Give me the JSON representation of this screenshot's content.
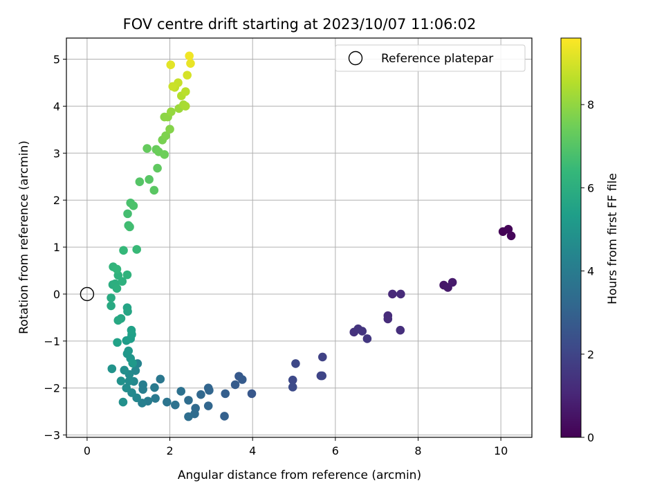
{
  "chart_data": {
    "type": "scatter",
    "title": "FOV centre drift starting at 2023/10/07 11:06:02",
    "xlabel": "Angular distance from reference (arcmin)",
    "ylabel": "Rotation from reference (arcmin)",
    "xlim": [
      -0.5,
      10.75
    ],
    "ylim": [
      -3.05,
      5.45
    ],
    "x_ticks": [
      0,
      2,
      4,
      6,
      8,
      10
    ],
    "y_ticks": [
      -3,
      -2,
      -1,
      0,
      1,
      2,
      3,
      4,
      5
    ],
    "grid": true,
    "legend": {
      "placement": "top-right",
      "entries": [
        "Reference platepar"
      ]
    },
    "reference_point": {
      "x": 0,
      "y": 0,
      "marker": "open-circle"
    },
    "colorbar": {
      "label": "Hours from first FF file",
      "colormap": "viridis",
      "range": [
        0,
        9.6
      ],
      "ticks": [
        0,
        2,
        4,
        6,
        8
      ]
    },
    "series": [
      {
        "points": [
          {
            "x": 10.05,
            "y": 1.33,
            "h": 0.05
          },
          {
            "x": 10.18,
            "y": 1.38,
            "h": 0.1
          },
          {
            "x": 10.25,
            "y": 1.24,
            "h": 0.15
          },
          {
            "x": 8.62,
            "y": 0.19,
            "h": 0.6
          },
          {
            "x": 8.72,
            "y": 0.14,
            "h": 0.65
          },
          {
            "x": 8.83,
            "y": 0.25,
            "h": 0.7
          },
          {
            "x": 7.38,
            "y": 0.0,
            "h": 1.1
          },
          {
            "x": 7.58,
            "y": 0.0,
            "h": 1.15
          },
          {
            "x": 7.27,
            "y": -0.46,
            "h": 1.2
          },
          {
            "x": 7.27,
            "y": -0.53,
            "h": 1.22
          },
          {
            "x": 7.57,
            "y": -0.77,
            "h": 1.3
          },
          {
            "x": 6.45,
            "y": -0.81,
            "h": 1.4
          },
          {
            "x": 6.55,
            "y": -0.74,
            "h": 1.45
          },
          {
            "x": 6.65,
            "y": -0.79,
            "h": 1.5
          },
          {
            "x": 6.77,
            "y": -0.95,
            "h": 1.55
          },
          {
            "x": 5.69,
            "y": -1.34,
            "h": 1.9
          },
          {
            "x": 5.04,
            "y": -1.48,
            "h": 2.1
          },
          {
            "x": 4.97,
            "y": -1.83,
            "h": 2.15
          },
          {
            "x": 4.97,
            "y": -1.98,
            "h": 2.2
          },
          {
            "x": 5.65,
            "y": -1.74,
            "h": 2.0
          },
          {
            "x": 5.68,
            "y": -1.74,
            "h": 2.02
          },
          {
            "x": 3.98,
            "y": -2.12,
            "h": 2.6
          },
          {
            "x": 3.67,
            "y": -1.75,
            "h": 2.7
          },
          {
            "x": 3.75,
            "y": -1.82,
            "h": 2.75
          },
          {
            "x": 3.58,
            "y": -1.93,
            "h": 2.8
          },
          {
            "x": 3.34,
            "y": -2.12,
            "h": 2.9
          },
          {
            "x": 3.32,
            "y": -2.6,
            "h": 2.95
          },
          {
            "x": 2.93,
            "y": -2.0,
            "h": 3.1
          },
          {
            "x": 2.95,
            "y": -2.05,
            "h": 3.12
          },
          {
            "x": 2.93,
            "y": -2.38,
            "h": 3.15
          },
          {
            "x": 2.75,
            "y": -2.14,
            "h": 3.2
          },
          {
            "x": 2.62,
            "y": -2.43,
            "h": 3.3
          },
          {
            "x": 2.6,
            "y": -2.55,
            "h": 3.35
          },
          {
            "x": 2.45,
            "y": -2.26,
            "h": 3.4
          },
          {
            "x": 2.45,
            "y": -2.61,
            "h": 3.45
          },
          {
            "x": 2.27,
            "y": -2.07,
            "h": 3.55
          },
          {
            "x": 2.13,
            "y": -2.36,
            "h": 3.6
          },
          {
            "x": 1.93,
            "y": -2.3,
            "h": 3.7
          },
          {
            "x": 1.77,
            "y": -1.81,
            "h": 3.8
          },
          {
            "x": 1.65,
            "y": -2.22,
            "h": 3.9
          },
          {
            "x": 1.63,
            "y": -1.99,
            "h": 3.95
          },
          {
            "x": 1.47,
            "y": -2.28,
            "h": 4.0
          },
          {
            "x": 1.35,
            "y": -1.93,
            "h": 4.1
          },
          {
            "x": 1.35,
            "y": -2.03,
            "h": 4.12
          },
          {
            "x": 1.33,
            "y": -2.32,
            "h": 4.15
          },
          {
            "x": 1.22,
            "y": -1.48,
            "h": 4.3
          },
          {
            "x": 1.2,
            "y": -2.21,
            "h": 4.4
          },
          {
            "x": 1.17,
            "y": -1.63,
            "h": 4.45
          },
          {
            "x": 1.13,
            "y": -1.86,
            "h": 4.5
          },
          {
            "x": 1.08,
            "y": -2.1,
            "h": 4.55
          },
          {
            "x": 1.02,
            "y": -1.71,
            "h": 4.6
          },
          {
            "x": 1.02,
            "y": -1.85,
            "h": 4.65
          },
          {
            "x": 0.95,
            "y": -2.0,
            "h": 4.7
          },
          {
            "x": 0.9,
            "y": -1.62,
            "h": 4.75
          },
          {
            "x": 0.87,
            "y": -2.3,
            "h": 4.8
          },
          {
            "x": 0.82,
            "y": -1.85,
            "h": 4.85
          },
          {
            "x": 0.6,
            "y": -1.59,
            "h": 4.9
          },
          {
            "x": 1.05,
            "y": -1.37,
            "h": 5.0
          },
          {
            "x": 0.97,
            "y": -1.27,
            "h": 5.05
          },
          {
            "x": 1.0,
            "y": -1.21,
            "h": 5.1
          },
          {
            "x": 1.1,
            "y": -1.47,
            "h": 5.15
          },
          {
            "x": 0.95,
            "y": -0.99,
            "h": 5.3
          },
          {
            "x": 1.05,
            "y": -0.95,
            "h": 5.35
          },
          {
            "x": 1.08,
            "y": -0.86,
            "h": 5.4
          },
          {
            "x": 1.07,
            "y": -0.77,
            "h": 5.45
          },
          {
            "x": 0.73,
            "y": -1.03,
            "h": 5.5
          },
          {
            "x": 0.97,
            "y": -0.29,
            "h": 5.6
          },
          {
            "x": 0.98,
            "y": -0.37,
            "h": 5.65
          },
          {
            "x": 0.82,
            "y": -0.52,
            "h": 5.7
          },
          {
            "x": 0.75,
            "y": -0.56,
            "h": 5.75
          },
          {
            "x": 0.58,
            "y": -0.25,
            "h": 5.8
          },
          {
            "x": 0.58,
            "y": -0.08,
            "h": 5.85
          },
          {
            "x": 0.62,
            "y": 0.2,
            "h": 5.95
          },
          {
            "x": 0.68,
            "y": 0.22,
            "h": 6.0
          },
          {
            "x": 0.72,
            "y": 0.12,
            "h": 6.05
          },
          {
            "x": 0.85,
            "y": 0.27,
            "h": 6.1
          },
          {
            "x": 0.75,
            "y": 0.4,
            "h": 6.15
          },
          {
            "x": 0.97,
            "y": 0.41,
            "h": 6.2
          },
          {
            "x": 0.63,
            "y": 0.58,
            "h": 6.25
          },
          {
            "x": 0.72,
            "y": 0.53,
            "h": 6.3
          },
          {
            "x": 0.88,
            "y": 0.93,
            "h": 6.4
          },
          {
            "x": 1.2,
            "y": 0.95,
            "h": 6.45
          },
          {
            "x": 1.0,
            "y": 1.46,
            "h": 6.6
          },
          {
            "x": 1.03,
            "y": 1.43,
            "h": 6.65
          },
          {
            "x": 0.98,
            "y": 1.71,
            "h": 6.7
          },
          {
            "x": 1.05,
            "y": 1.94,
            "h": 6.8
          },
          {
            "x": 1.12,
            "y": 1.88,
            "h": 6.85
          },
          {
            "x": 1.27,
            "y": 2.39,
            "h": 7.0
          },
          {
            "x": 1.5,
            "y": 2.44,
            "h": 7.05
          },
          {
            "x": 1.62,
            "y": 2.21,
            "h": 7.1
          },
          {
            "x": 1.7,
            "y": 2.68,
            "h": 7.2
          },
          {
            "x": 1.45,
            "y": 3.1,
            "h": 7.3
          },
          {
            "x": 1.67,
            "y": 3.08,
            "h": 7.35
          },
          {
            "x": 1.73,
            "y": 3.03,
            "h": 7.4
          },
          {
            "x": 1.87,
            "y": 2.97,
            "h": 7.45
          },
          {
            "x": 1.82,
            "y": 3.28,
            "h": 7.6
          },
          {
            "x": 1.9,
            "y": 3.37,
            "h": 7.7
          },
          {
            "x": 2.0,
            "y": 3.51,
            "h": 7.8
          },
          {
            "x": 1.87,
            "y": 3.77,
            "h": 7.9
          },
          {
            "x": 1.95,
            "y": 3.77,
            "h": 7.95
          },
          {
            "x": 2.03,
            "y": 3.88,
            "h": 8.05
          },
          {
            "x": 2.22,
            "y": 3.95,
            "h": 8.15
          },
          {
            "x": 2.33,
            "y": 4.03,
            "h": 8.3
          },
          {
            "x": 2.38,
            "y": 4.0,
            "h": 8.35
          },
          {
            "x": 2.28,
            "y": 4.22,
            "h": 8.5
          },
          {
            "x": 2.38,
            "y": 4.31,
            "h": 8.6
          },
          {
            "x": 2.12,
            "y": 4.4,
            "h": 8.7
          },
          {
            "x": 2.2,
            "y": 4.5,
            "h": 8.8
          },
          {
            "x": 2.07,
            "y": 4.42,
            "h": 8.85
          },
          {
            "x": 2.42,
            "y": 4.66,
            "h": 9.0
          },
          {
            "x": 2.02,
            "y": 4.88,
            "h": 9.2
          },
          {
            "x": 2.5,
            "y": 4.91,
            "h": 9.3
          },
          {
            "x": 2.47,
            "y": 5.07,
            "h": 9.4
          }
        ]
      }
    ]
  }
}
